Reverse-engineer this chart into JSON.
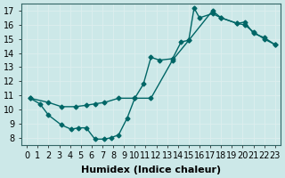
{
  "xlabel": "Humidex (Indice chaleur)",
  "ylabel": "",
  "background_color": "#cce8e8",
  "line_color": "#006666",
  "grid_color": "#ddeeee",
  "xlim": [
    -0.5,
    23.5
  ],
  "ylim": [
    7.5,
    17.5
  ],
  "xticks": [
    0,
    1,
    2,
    3,
    4,
    5,
    6,
    7,
    8,
    9,
    10,
    11,
    12,
    13,
    14,
    15,
    16,
    17,
    18,
    19,
    20,
    21,
    22,
    23
  ],
  "yticks": [
    8,
    9,
    10,
    11,
    12,
    13,
    14,
    15,
    16,
    17
  ],
  "series": [
    {
      "x": [
        0.3,
        2.0,
        3.2,
        4.5,
        5.5,
        6.3,
        7.2,
        8.5,
        10.0,
        10.8,
        11.5,
        12.3,
        13.5,
        14.3,
        15.0,
        15.5,
        16.0,
        17.2,
        18.0,
        19.5,
        20.2,
        21.0,
        22.0,
        23.0
      ],
      "y": [
        10.8,
        10.5,
        10.2,
        10.2,
        10.3,
        10.4,
        10.5,
        10.8,
        10.8,
        11.8,
        13.7,
        13.5,
        13.6,
        14.8,
        14.9,
        17.2,
        16.5,
        16.8,
        16.5,
        16.1,
        16.2,
        15.4,
        15.1,
        14.6
      ]
    },
    {
      "x": [
        0.3,
        1.2,
        2.0,
        3.2,
        4.1,
        4.8,
        5.5,
        6.3,
        7.2,
        7.8,
        8.5,
        9.3,
        10.0,
        11.5,
        13.5,
        15.0,
        17.2,
        18.0,
        19.5,
        20.2,
        21.0,
        22.0,
        23.0
      ],
      "y": [
        10.8,
        10.4,
        9.6,
        8.9,
        8.6,
        8.7,
        8.7,
        7.9,
        7.9,
        8.0,
        8.2,
        9.4,
        10.8,
        10.8,
        13.5,
        14.9,
        17.0,
        16.5,
        16.1,
        16.0,
        15.5,
        15.0,
        14.6
      ]
    }
  ],
  "marker": "D",
  "marker_size": 2.5,
  "line_width": 1.0,
  "font_size": 7
}
